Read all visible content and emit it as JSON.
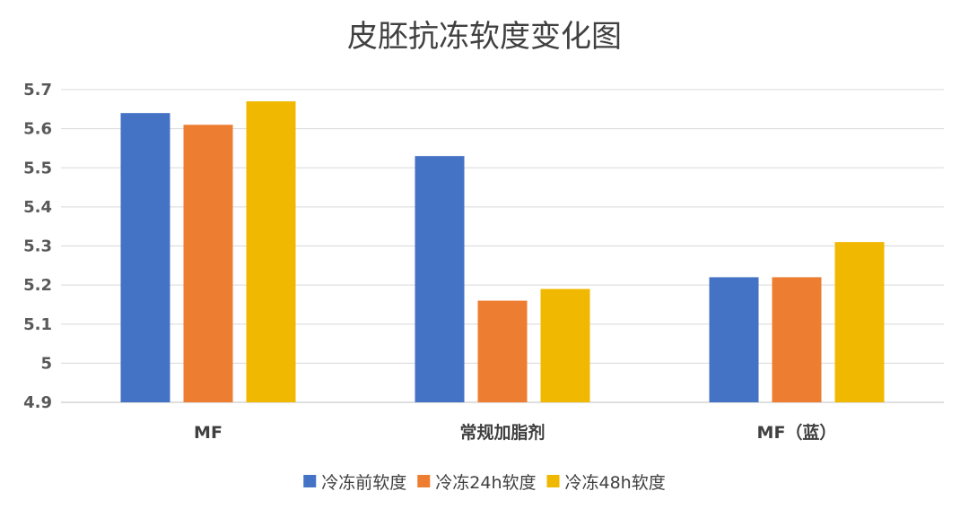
{
  "chart_data": {
    "type": "bar",
    "title": "皮胚抗冻软度变化图",
    "xlabel": "",
    "ylabel": "",
    "categories": [
      "MF",
      "常规加脂剂",
      "MF（蓝）"
    ],
    "series": [
      {
        "name": "冷冻前软度",
        "color": "#4472C4",
        "values": [
          5.64,
          5.53,
          5.22
        ]
      },
      {
        "name": "冷冻24h软度",
        "color": "#ED7D31",
        "values": [
          5.61,
          5.16,
          5.22
        ]
      },
      {
        "name": "冷冻48h软度",
        "color": "#F0B800",
        "values": [
          5.67,
          5.19,
          5.31
        ]
      }
    ],
    "ylim": [
      4.9,
      5.7
    ],
    "yticks": [
      "5.7",
      "5.6",
      "5.5",
      "5.4",
      "5.3",
      "5.2",
      "5.1",
      "5",
      "4.9"
    ],
    "grid": true,
    "legend": "bottom-center"
  }
}
